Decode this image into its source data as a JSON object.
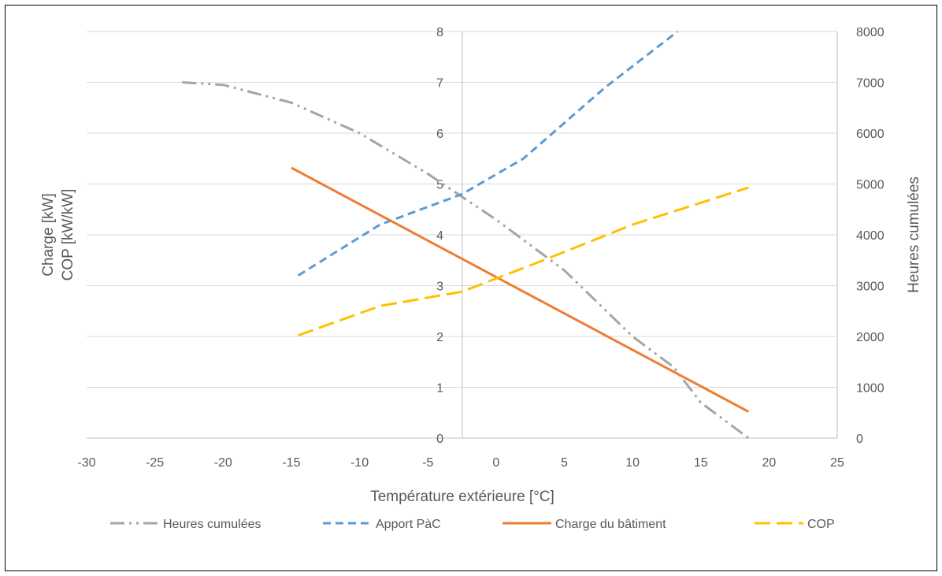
{
  "chart_data": {
    "type": "line",
    "xlabel": "Température extérieure [°C]",
    "ylabel_left": [
      "Charge [kW]",
      "COP [kW/kW]"
    ],
    "ylabel_right": "Heures cumulées",
    "xlim": [
      -30,
      25
    ],
    "ylim_left": [
      0,
      8
    ],
    "ylim_right": [
      0,
      8000
    ],
    "x_ticks": [
      "-30",
      "-25",
      "-20",
      "-15",
      "-10",
      "-5",
      "0",
      "5",
      "10",
      "15",
      "20",
      "25"
    ],
    "y_ticks_left": [
      "0",
      "1",
      "2",
      "3",
      "4",
      "5",
      "6",
      "7",
      "8"
    ],
    "y_ticks_right": [
      "0",
      "1000",
      "2000",
      "3000",
      "4000",
      "5000",
      "6000",
      "7000",
      "8000"
    ],
    "grid": true,
    "legend_position": "bottom",
    "series": [
      {
        "name": "Heures cumulées",
        "axis": "right",
        "color": "#a5a5a5",
        "dash": "dash-dot-dot",
        "points": [
          [
            -23,
            7000
          ],
          [
            -20,
            6950
          ],
          [
            -15,
            6600
          ],
          [
            -10,
            6000
          ],
          [
            -5,
            5200
          ],
          [
            0,
            4300
          ],
          [
            5,
            3300
          ],
          [
            10,
            2000
          ],
          [
            13,
            1400
          ],
          [
            15,
            700
          ],
          [
            18.5,
            0
          ]
        ]
      },
      {
        "name": "Apport PàC",
        "axis": "left",
        "color": "#5b9bd5",
        "dash": "dash",
        "points": [
          [
            -14.5,
            3.2
          ],
          [
            -8.5,
            4.2
          ],
          [
            -2.5,
            4.8
          ],
          [
            2,
            5.5
          ],
          [
            8,
            6.9
          ],
          [
            13.3,
            8.0
          ]
        ]
      },
      {
        "name": "Charge du bâtiment",
        "axis": "left",
        "color": "#ed7d31",
        "dash": "solid",
        "points": [
          [
            -15,
            5.32
          ],
          [
            18.5,
            0.52
          ]
        ]
      },
      {
        "name": "COP",
        "axis": "left",
        "color": "#ffc000",
        "dash": "long-dash",
        "points": [
          [
            -14.5,
            2.02
          ],
          [
            -8.5,
            2.6
          ],
          [
            -2.5,
            2.88
          ],
          [
            3,
            3.45
          ],
          [
            10,
            4.2
          ],
          [
            18.5,
            4.93
          ]
        ]
      }
    ]
  }
}
